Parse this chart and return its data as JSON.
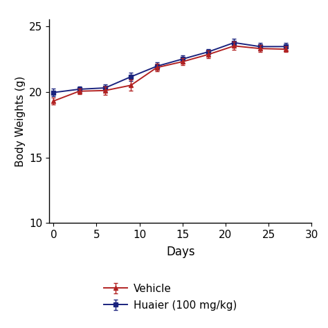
{
  "days": [
    0,
    3,
    6,
    9,
    12,
    15,
    18,
    21,
    24,
    27
  ],
  "vehicle_mean": [
    19.3,
    20.05,
    20.1,
    20.5,
    21.85,
    22.3,
    22.85,
    23.5,
    23.3,
    23.25
  ],
  "vehicle_err": [
    0.28,
    0.22,
    0.32,
    0.42,
    0.28,
    0.28,
    0.28,
    0.32,
    0.28,
    0.22
  ],
  "huaier_mean": [
    19.95,
    20.2,
    20.3,
    21.15,
    21.95,
    22.5,
    23.05,
    23.75,
    23.45,
    23.45
  ],
  "huaier_err": [
    0.28,
    0.22,
    0.28,
    0.32,
    0.28,
    0.28,
    0.22,
    0.28,
    0.28,
    0.28
  ],
  "vehicle_color": "#b22222",
  "huaier_color": "#1a237e",
  "xlabel": "Days",
  "ylabel": "Body Weights (g)",
  "xlim": [
    -0.5,
    29
  ],
  "ylim": [
    10,
    25.5
  ],
  "xticks": [
    0,
    5,
    10,
    15,
    20,
    25,
    30
  ],
  "yticks": [
    10,
    15,
    20,
    25
  ],
  "legend_vehicle": "Vehicle",
  "legend_huaier": "Huaier (100 mg/kg)",
  "background_color": "#ffffff",
  "axis_linewidth": 1.0,
  "line_linewidth": 1.4,
  "marker_size": 4.5,
  "capsize": 2.5,
  "elinewidth": 1.0
}
